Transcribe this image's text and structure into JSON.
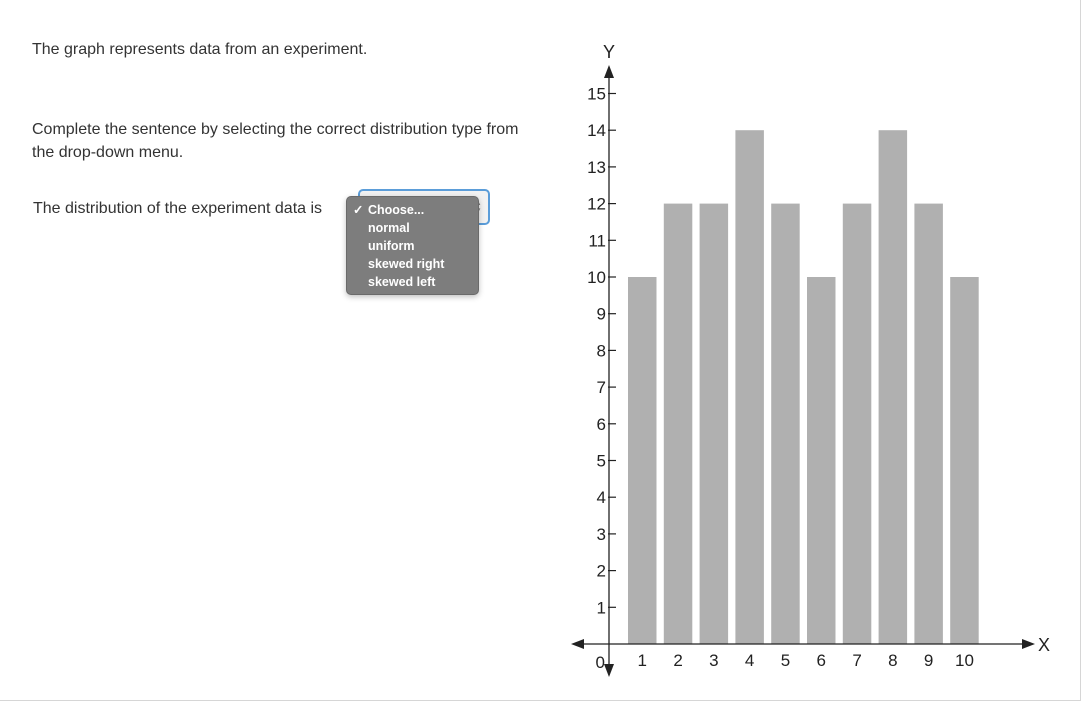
{
  "question": {
    "intro": "The graph represents data from an experiment.",
    "instruction": "Complete the sentence by selecting the correct distribution type from the drop-down menu.",
    "sentence_prefix": "The distribution of the experiment data is"
  },
  "dropdown": {
    "options": [
      "Choose...",
      "normal",
      "uniform",
      "skewed right",
      "skewed left"
    ],
    "selected": "Choose...",
    "checkmark": "✓"
  },
  "chart_data": {
    "type": "bar",
    "categories": [
      "1",
      "2",
      "3",
      "4",
      "5",
      "6",
      "7",
      "8",
      "9",
      "10"
    ],
    "values": [
      10,
      12,
      12,
      14,
      12,
      10,
      12,
      14,
      12,
      10
    ],
    "xlabel": "X",
    "ylabel": "Y",
    "ylim": [
      0,
      15
    ],
    "yticks": [
      "0",
      "1",
      "2",
      "3",
      "4",
      "5",
      "6",
      "7",
      "8",
      "9",
      "10",
      "11",
      "12",
      "13",
      "14",
      "15"
    ],
    "bar_color": "#b0b0b0",
    "grid": false
  }
}
